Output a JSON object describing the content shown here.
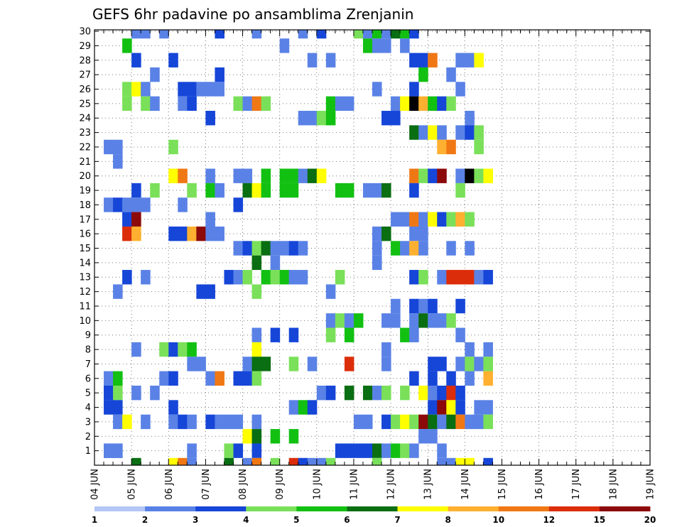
{
  "chart_data": {
    "type": "heatmap",
    "title": "GEFS 6hr padavine po ansamblima Zrenjanin",
    "y_ticks": [
      "1",
      "2",
      "3",
      "4",
      "5",
      "6",
      "7",
      "8",
      "9",
      "10",
      "11",
      "12",
      "13",
      "14",
      "15",
      "16",
      "17",
      "18",
      "19",
      "20",
      "21",
      "22",
      "23",
      "24",
      "25",
      "26",
      "27",
      "28",
      "29",
      "30"
    ],
    "x_ticks": [
      "04 JUN",
      "05 JUN",
      "06 JUN",
      "07 JUN",
      "08 JUN",
      "09 JUN",
      "10 JUN",
      "11 JUN",
      "12 JUN",
      "13 JUN",
      "14 JUN",
      "15 JUN",
      "16 JUN",
      "17 JUN",
      "18 JUN",
      "19 JUN"
    ],
    "x_steps_per_day": 4,
    "colorbar": {
      "ticks": [
        "1",
        "2",
        "3",
        "4",
        "5",
        "6",
        "7",
        "8",
        "10",
        "12",
        "15",
        "20"
      ],
      "colors": [
        "#b3c6f5",
        "#5a82e6",
        "#1646d8",
        "#7ae05a",
        "#12c012",
        "#0a6e12",
        "#ffff00",
        "#ffb030",
        "#f07814",
        "#dc2d0a",
        "#8c0a0a"
      ]
    },
    "cells": [
      [
        1,
        1,
        1
      ],
      [
        1,
        2,
        1
      ],
      [
        30,
        4,
        1
      ],
      [
        30,
        5,
        1
      ],
      [
        30,
        7,
        1
      ],
      [
        30,
        13,
        2
      ],
      [
        30,
        17,
        1
      ],
      [
        30,
        22,
        1
      ],
      [
        30,
        24,
        2
      ],
      [
        30,
        28,
        3
      ],
      [
        30,
        29,
        1
      ],
      [
        30,
        30,
        4
      ],
      [
        30,
        31,
        1
      ],
      [
        30,
        32,
        5
      ],
      [
        30,
        33,
        4
      ],
      [
        30,
        34,
        2
      ],
      [
        29,
        3,
        4
      ],
      [
        29,
        20,
        1
      ],
      [
        29,
        29,
        4
      ],
      [
        29,
        30,
        1
      ],
      [
        29,
        31,
        1
      ],
      [
        29,
        33,
        1
      ],
      [
        28,
        4,
        2
      ],
      [
        28,
        8,
        2
      ],
      [
        28,
        23,
        1
      ],
      [
        28,
        25,
        1
      ],
      [
        28,
        34,
        2
      ],
      [
        28,
        35,
        2
      ],
      [
        28,
        36,
        8
      ],
      [
        28,
        39,
        1
      ],
      [
        28,
        40,
        1
      ],
      [
        28,
        41,
        6
      ],
      [
        27,
        6,
        1
      ],
      [
        27,
        13,
        2
      ],
      [
        27,
        35,
        4
      ],
      [
        27,
        38,
        1
      ],
      [
        26,
        3,
        3
      ],
      [
        26,
        4,
        6
      ],
      [
        26,
        5,
        1
      ],
      [
        26,
        9,
        2
      ],
      [
        26,
        10,
        2
      ],
      [
        26,
        11,
        1
      ],
      [
        26,
        12,
        1
      ],
      [
        26,
        13,
        1
      ],
      [
        26,
        30,
        1
      ],
      [
        26,
        34,
        2
      ],
      [
        26,
        39,
        1
      ],
      [
        25,
        3,
        3
      ],
      [
        25,
        5,
        3
      ],
      [
        25,
        6,
        1
      ],
      [
        25,
        9,
        1
      ],
      [
        25,
        10,
        2
      ],
      [
        25,
        15,
        3
      ],
      [
        25,
        16,
        1
      ],
      [
        25,
        17,
        8
      ],
      [
        25,
        18,
        3
      ],
      [
        25,
        25,
        4
      ],
      [
        25,
        26,
        1
      ],
      [
        25,
        27,
        1
      ],
      [
        25,
        32,
        1
      ],
      [
        25,
        33,
        6
      ],
      [
        25,
        34,
        11
      ],
      [
        25,
        35,
        7
      ],
      [
        25,
        36,
        4
      ],
      [
        25,
        37,
        2
      ],
      [
        25,
        38,
        3
      ],
      [
        24,
        12,
        2
      ],
      [
        24,
        22,
        1
      ],
      [
        24,
        23,
        1
      ],
      [
        24,
        24,
        3
      ],
      [
        24,
        25,
        4
      ],
      [
        24,
        31,
        2
      ],
      [
        24,
        32,
        2
      ],
      [
        24,
        40,
        1
      ],
      [
        23,
        34,
        5
      ],
      [
        23,
        35,
        1
      ],
      [
        23,
        36,
        6
      ],
      [
        23,
        37,
        1
      ],
      [
        23,
        39,
        1
      ],
      [
        23,
        40,
        2
      ],
      [
        23,
        41,
        3
      ],
      [
        22,
        1,
        1
      ],
      [
        22,
        2,
        1
      ],
      [
        22,
        8,
        3
      ],
      [
        22,
        37,
        7
      ],
      [
        22,
        38,
        8
      ],
      [
        22,
        41,
        3
      ],
      [
        21,
        2,
        1
      ],
      [
        20,
        8,
        6
      ],
      [
        20,
        9,
        8
      ],
      [
        20,
        12,
        1
      ],
      [
        20,
        15,
        1
      ],
      [
        20,
        16,
        1
      ],
      [
        20,
        18,
        4
      ],
      [
        20,
        20,
        4
      ],
      [
        20,
        21,
        4
      ],
      [
        20,
        22,
        1
      ],
      [
        20,
        23,
        5
      ],
      [
        20,
        24,
        6
      ],
      [
        20,
        34,
        8
      ],
      [
        20,
        35,
        3
      ],
      [
        20,
        36,
        2
      ],
      [
        20,
        37,
        10
      ],
      [
        20,
        39,
        1
      ],
      [
        20,
        40,
        11
      ],
      [
        20,
        41,
        3
      ],
      [
        20,
        42,
        6
      ],
      [
        19,
        4,
        2
      ],
      [
        19,
        6,
        3
      ],
      [
        19,
        10,
        3
      ],
      [
        19,
        12,
        4
      ],
      [
        19,
        13,
        1
      ],
      [
        19,
        16,
        5
      ],
      [
        19,
        17,
        6
      ],
      [
        19,
        18,
        4
      ],
      [
        19,
        20,
        4
      ],
      [
        19,
        21,
        4
      ],
      [
        19,
        26,
        4
      ],
      [
        19,
        27,
        4
      ],
      [
        19,
        29,
        1
      ],
      [
        19,
        30,
        1
      ],
      [
        19,
        31,
        5
      ],
      [
        19,
        34,
        2
      ],
      [
        19,
        39,
        3
      ],
      [
        18,
        1,
        1
      ],
      [
        18,
        2,
        2
      ],
      [
        18,
        3,
        1
      ],
      [
        18,
        4,
        1
      ],
      [
        18,
        5,
        1
      ],
      [
        18,
        9,
        1
      ],
      [
        18,
        15,
        2
      ],
      [
        17,
        3,
        2
      ],
      [
        17,
        4,
        10
      ],
      [
        17,
        12,
        1
      ],
      [
        17,
        32,
        1
      ],
      [
        17,
        33,
        1
      ],
      [
        17,
        34,
        8
      ],
      [
        17,
        35,
        1
      ],
      [
        17,
        36,
        6
      ],
      [
        17,
        37,
        2
      ],
      [
        17,
        38,
        3
      ],
      [
        17,
        39,
        7
      ],
      [
        17,
        40,
        3
      ],
      [
        16,
        3,
        9
      ],
      [
        16,
        4,
        7
      ],
      [
        16,
        8,
        2
      ],
      [
        16,
        9,
        2
      ],
      [
        16,
        10,
        7
      ],
      [
        16,
        11,
        10
      ],
      [
        16,
        12,
        1
      ],
      [
        16,
        13,
        1
      ],
      [
        16,
        30,
        1
      ],
      [
        16,
        31,
        5
      ],
      [
        16,
        34,
        1
      ],
      [
        16,
        35,
        1
      ],
      [
        15,
        15,
        1
      ],
      [
        15,
        16,
        2
      ],
      [
        15,
        17,
        3
      ],
      [
        15,
        18,
        5
      ],
      [
        15,
        19,
        1
      ],
      [
        15,
        20,
        1
      ],
      [
        15,
        21,
        2
      ],
      [
        15,
        22,
        1
      ],
      [
        15,
        30,
        1
      ],
      [
        15,
        32,
        4
      ],
      [
        15,
        33,
        1
      ],
      [
        15,
        34,
        7
      ],
      [
        15,
        35,
        1
      ],
      [
        15,
        38,
        1
      ],
      [
        15,
        40,
        1
      ],
      [
        14,
        17,
        5
      ],
      [
        14,
        19,
        1
      ],
      [
        14,
        30,
        1
      ],
      [
        13,
        3,
        2
      ],
      [
        13,
        5,
        1
      ],
      [
        13,
        14,
        2
      ],
      [
        13,
        15,
        1
      ],
      [
        13,
        16,
        3
      ],
      [
        13,
        18,
        4
      ],
      [
        13,
        19,
        3
      ],
      [
        13,
        20,
        4
      ],
      [
        13,
        21,
        1
      ],
      [
        13,
        22,
        1
      ],
      [
        13,
        26,
        3
      ],
      [
        13,
        34,
        2
      ],
      [
        13,
        35,
        3
      ],
      [
        13,
        37,
        1
      ],
      [
        13,
        38,
        9
      ],
      [
        13,
        39,
        9
      ],
      [
        13,
        40,
        9
      ],
      [
        13,
        41,
        1
      ],
      [
        13,
        42,
        2
      ],
      [
        12,
        2,
        1
      ],
      [
        12,
        11,
        2
      ],
      [
        12,
        12,
        2
      ],
      [
        12,
        17,
        3
      ],
      [
        12,
        25,
        1
      ],
      [
        11,
        32,
        1
      ],
      [
        11,
        34,
        2
      ],
      [
        11,
        35,
        1
      ],
      [
        11,
        36,
        2
      ],
      [
        11,
        39,
        2
      ],
      [
        10,
        25,
        1
      ],
      [
        10,
        26,
        3
      ],
      [
        10,
        27,
        1
      ],
      [
        10,
        28,
        4
      ],
      [
        10,
        31,
        1
      ],
      [
        10,
        32,
        1
      ],
      [
        10,
        34,
        1
      ],
      [
        10,
        35,
        5
      ],
      [
        10,
        36,
        1
      ],
      [
        10,
        37,
        1
      ],
      [
        10,
        38,
        3
      ],
      [
        9,
        17,
        1
      ],
      [
        9,
        19,
        2
      ],
      [
        9,
        21,
        2
      ],
      [
        9,
        25,
        3
      ],
      [
        9,
        27,
        4
      ],
      [
        9,
        33,
        4
      ],
      [
        9,
        34,
        1
      ],
      [
        9,
        39,
        1
      ],
      [
        8,
        4,
        1
      ],
      [
        8,
        7,
        3
      ],
      [
        8,
        8,
        2
      ],
      [
        8,
        9,
        3
      ],
      [
        8,
        10,
        4
      ],
      [
        8,
        17,
        6
      ],
      [
        8,
        31,
        1
      ],
      [
        8,
        40,
        1
      ],
      [
        8,
        42,
        1
      ],
      [
        7,
        10,
        1
      ],
      [
        7,
        11,
        1
      ],
      [
        7,
        16,
        1
      ],
      [
        7,
        17,
        5
      ],
      [
        7,
        18,
        5
      ],
      [
        7,
        21,
        3
      ],
      [
        7,
        23,
        1
      ],
      [
        7,
        27,
        9
      ],
      [
        7,
        31,
        1
      ],
      [
        7,
        36,
        2
      ],
      [
        7,
        37,
        2
      ],
      [
        7,
        39,
        1
      ],
      [
        7,
        40,
        3
      ],
      [
        7,
        41,
        1
      ],
      [
        7,
        42,
        3
      ],
      [
        6,
        1,
        1
      ],
      [
        6,
        2,
        4
      ],
      [
        6,
        7,
        1
      ],
      [
        6,
        8,
        2
      ],
      [
        6,
        12,
        1
      ],
      [
        6,
        13,
        8
      ],
      [
        6,
        15,
        2
      ],
      [
        6,
        16,
        2
      ],
      [
        6,
        17,
        3
      ],
      [
        6,
        34,
        2
      ],
      [
        6,
        36,
        2
      ],
      [
        6,
        38,
        2
      ],
      [
        6,
        40,
        1
      ],
      [
        6,
        42,
        7
      ],
      [
        5,
        1,
        2
      ],
      [
        5,
        2,
        3
      ],
      [
        5,
        4,
        1
      ],
      [
        5,
        6,
        1
      ],
      [
        5,
        24,
        1
      ],
      [
        5,
        25,
        2
      ],
      [
        5,
        27,
        5
      ],
      [
        5,
        29,
        5
      ],
      [
        5,
        30,
        1
      ],
      [
        5,
        31,
        3
      ],
      [
        5,
        33,
        3
      ],
      [
        5,
        35,
        6
      ],
      [
        5,
        36,
        1
      ],
      [
        5,
        37,
        2
      ],
      [
        5,
        38,
        9
      ],
      [
        5,
        39,
        2
      ],
      [
        4,
        1,
        2
      ],
      [
        4,
        2,
        2
      ],
      [
        4,
        8,
        2
      ],
      [
        4,
        21,
        1
      ],
      [
        4,
        22,
        4
      ],
      [
        4,
        23,
        2
      ],
      [
        4,
        36,
        2
      ],
      [
        4,
        37,
        10
      ],
      [
        4,
        38,
        6
      ],
      [
        4,
        39,
        2
      ],
      [
        4,
        41,
        1
      ],
      [
        4,
        42,
        1
      ],
      [
        3,
        2,
        1
      ],
      [
        3,
        3,
        6
      ],
      [
        3,
        5,
        1
      ],
      [
        3,
        8,
        1
      ],
      [
        3,
        9,
        2
      ],
      [
        3,
        10,
        1
      ],
      [
        3,
        12,
        2
      ],
      [
        3,
        13,
        1
      ],
      [
        3,
        14,
        1
      ],
      [
        3,
        15,
        1
      ],
      [
        3,
        17,
        1
      ],
      [
        3,
        28,
        1
      ],
      [
        3,
        29,
        1
      ],
      [
        3,
        31,
        2
      ],
      [
        3,
        32,
        3
      ],
      [
        3,
        33,
        6
      ],
      [
        3,
        34,
        3
      ],
      [
        3,
        35,
        10
      ],
      [
        3,
        36,
        5
      ],
      [
        3,
        37,
        1
      ],
      [
        3,
        38,
        5
      ],
      [
        3,
        39,
        8
      ],
      [
        3,
        40,
        1
      ],
      [
        3,
        41,
        1
      ],
      [
        3,
        42,
        3
      ],
      [
        2,
        16,
        6
      ],
      [
        2,
        17,
        5
      ],
      [
        2,
        19,
        4
      ],
      [
        2,
        21,
        4
      ],
      [
        2,
        35,
        1
      ],
      [
        2,
        36,
        1
      ],
      [
        1,
        1,
        1
      ],
      [
        1,
        2,
        1
      ],
      [
        1,
        10,
        1
      ],
      [
        1,
        14,
        3
      ],
      [
        1,
        15,
        2
      ],
      [
        1,
        17,
        2
      ],
      [
        1,
        26,
        2
      ],
      [
        1,
        27,
        2
      ],
      [
        1,
        28,
        2
      ],
      [
        1,
        29,
        2
      ],
      [
        1,
        30,
        5
      ],
      [
        1,
        31,
        1
      ],
      [
        1,
        32,
        4
      ],
      [
        1,
        33,
        3
      ],
      [
        1,
        34,
        1
      ],
      [
        1,
        37,
        1
      ],
      [
        0,
        4,
        5
      ],
      [
        0,
        8,
        6
      ],
      [
        0,
        9,
        8
      ],
      [
        0,
        10,
        1
      ],
      [
        0,
        14,
        5
      ],
      [
        0,
        16,
        1
      ],
      [
        0,
        17,
        8
      ],
      [
        0,
        19,
        3
      ],
      [
        0,
        21,
        9
      ],
      [
        0,
        22,
        2
      ],
      [
        0,
        23,
        1
      ],
      [
        0,
        24,
        1
      ],
      [
        0,
        25,
        3
      ],
      [
        0,
        30,
        3
      ],
      [
        0,
        37,
        1
      ],
      [
        0,
        38,
        1
      ],
      [
        0,
        39,
        6
      ],
      [
        0,
        40,
        6
      ],
      [
        0,
        42,
        2
      ]
    ]
  }
}
